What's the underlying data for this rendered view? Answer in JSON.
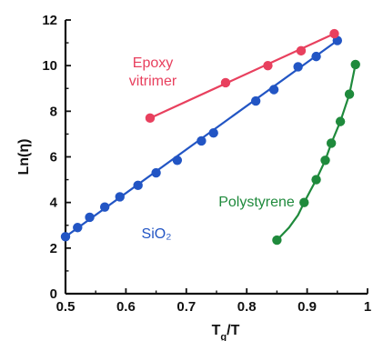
{
  "chart_data": {
    "type": "line",
    "xlabel": "T_g/T",
    "ylabel": "Ln(η)",
    "xlim": [
      0.5,
      1.0
    ],
    "ylim": [
      0,
      12
    ],
    "x_ticks": [
      0.5,
      0.6,
      0.7,
      0.8,
      0.9,
      1.0
    ],
    "x_tick_labels": [
      "0.5",
      "0.6",
      "0.7",
      "0.8",
      "0.9",
      "1"
    ],
    "y_ticks": [
      0,
      2,
      4,
      6,
      8,
      10,
      12
    ],
    "y_tick_labels": [
      "0",
      "2",
      "4",
      "6",
      "8",
      "10",
      "12"
    ],
    "grid": false,
    "series": [
      {
        "name": "SiO2",
        "label_lines": [
          "SiO₂"
        ],
        "color": "#2255c4",
        "points": [
          {
            "x": 0.5,
            "y": 2.5
          },
          {
            "x": 0.52,
            "y": 2.9
          },
          {
            "x": 0.54,
            "y": 3.35
          },
          {
            "x": 0.565,
            "y": 3.8
          },
          {
            "x": 0.59,
            "y": 4.25
          },
          {
            "x": 0.62,
            "y": 4.75
          },
          {
            "x": 0.65,
            "y": 5.3
          },
          {
            "x": 0.685,
            "y": 5.85
          },
          {
            "x": 0.725,
            "y": 6.7
          },
          {
            "x": 0.745,
            "y": 7.05
          },
          {
            "x": 0.815,
            "y": 8.45
          },
          {
            "x": 0.845,
            "y": 8.95
          },
          {
            "x": 0.885,
            "y": 9.95
          },
          {
            "x": 0.915,
            "y": 10.4
          },
          {
            "x": 0.95,
            "y": 11.1
          }
        ],
        "curve": [
          [
            0.5,
            2.5
          ],
          [
            0.95,
            11.1
          ]
        ]
      },
      {
        "name": "Epoxy vitrimer",
        "label_lines": [
          "Epoxy",
          "vitrimer"
        ],
        "color": "#e8405e",
        "points": [
          {
            "x": 0.64,
            "y": 7.7
          },
          {
            "x": 0.765,
            "y": 9.25
          },
          {
            "x": 0.835,
            "y": 10.0
          },
          {
            "x": 0.89,
            "y": 10.65
          },
          {
            "x": 0.945,
            "y": 11.4
          }
        ],
        "curve": [
          [
            0.64,
            7.7
          ],
          [
            0.945,
            11.4
          ]
        ]
      },
      {
        "name": "Polystyrene",
        "label_lines": [
          "Polystyrene"
        ],
        "color": "#1f8a3c",
        "points": [
          {
            "x": 0.85,
            "y": 2.35
          },
          {
            "x": 0.895,
            "y": 4.0
          },
          {
            "x": 0.915,
            "y": 5.0
          },
          {
            "x": 0.93,
            "y": 5.85
          },
          {
            "x": 0.94,
            "y": 6.6
          },
          {
            "x": 0.955,
            "y": 7.55
          },
          {
            "x": 0.97,
            "y": 8.75
          },
          {
            "x": 0.98,
            "y": 10.05
          }
        ],
        "curve": [
          [
            0.85,
            2.35
          ],
          [
            0.87,
            2.9
          ],
          [
            0.885,
            3.45
          ],
          [
            0.895,
            4.0
          ],
          [
            0.905,
            4.5
          ],
          [
            0.915,
            5.0
          ],
          [
            0.93,
            5.85
          ],
          [
            0.94,
            6.6
          ],
          [
            0.955,
            7.55
          ],
          [
            0.97,
            8.75
          ],
          [
            0.98,
            10.05
          ]
        ]
      }
    ]
  }
}
